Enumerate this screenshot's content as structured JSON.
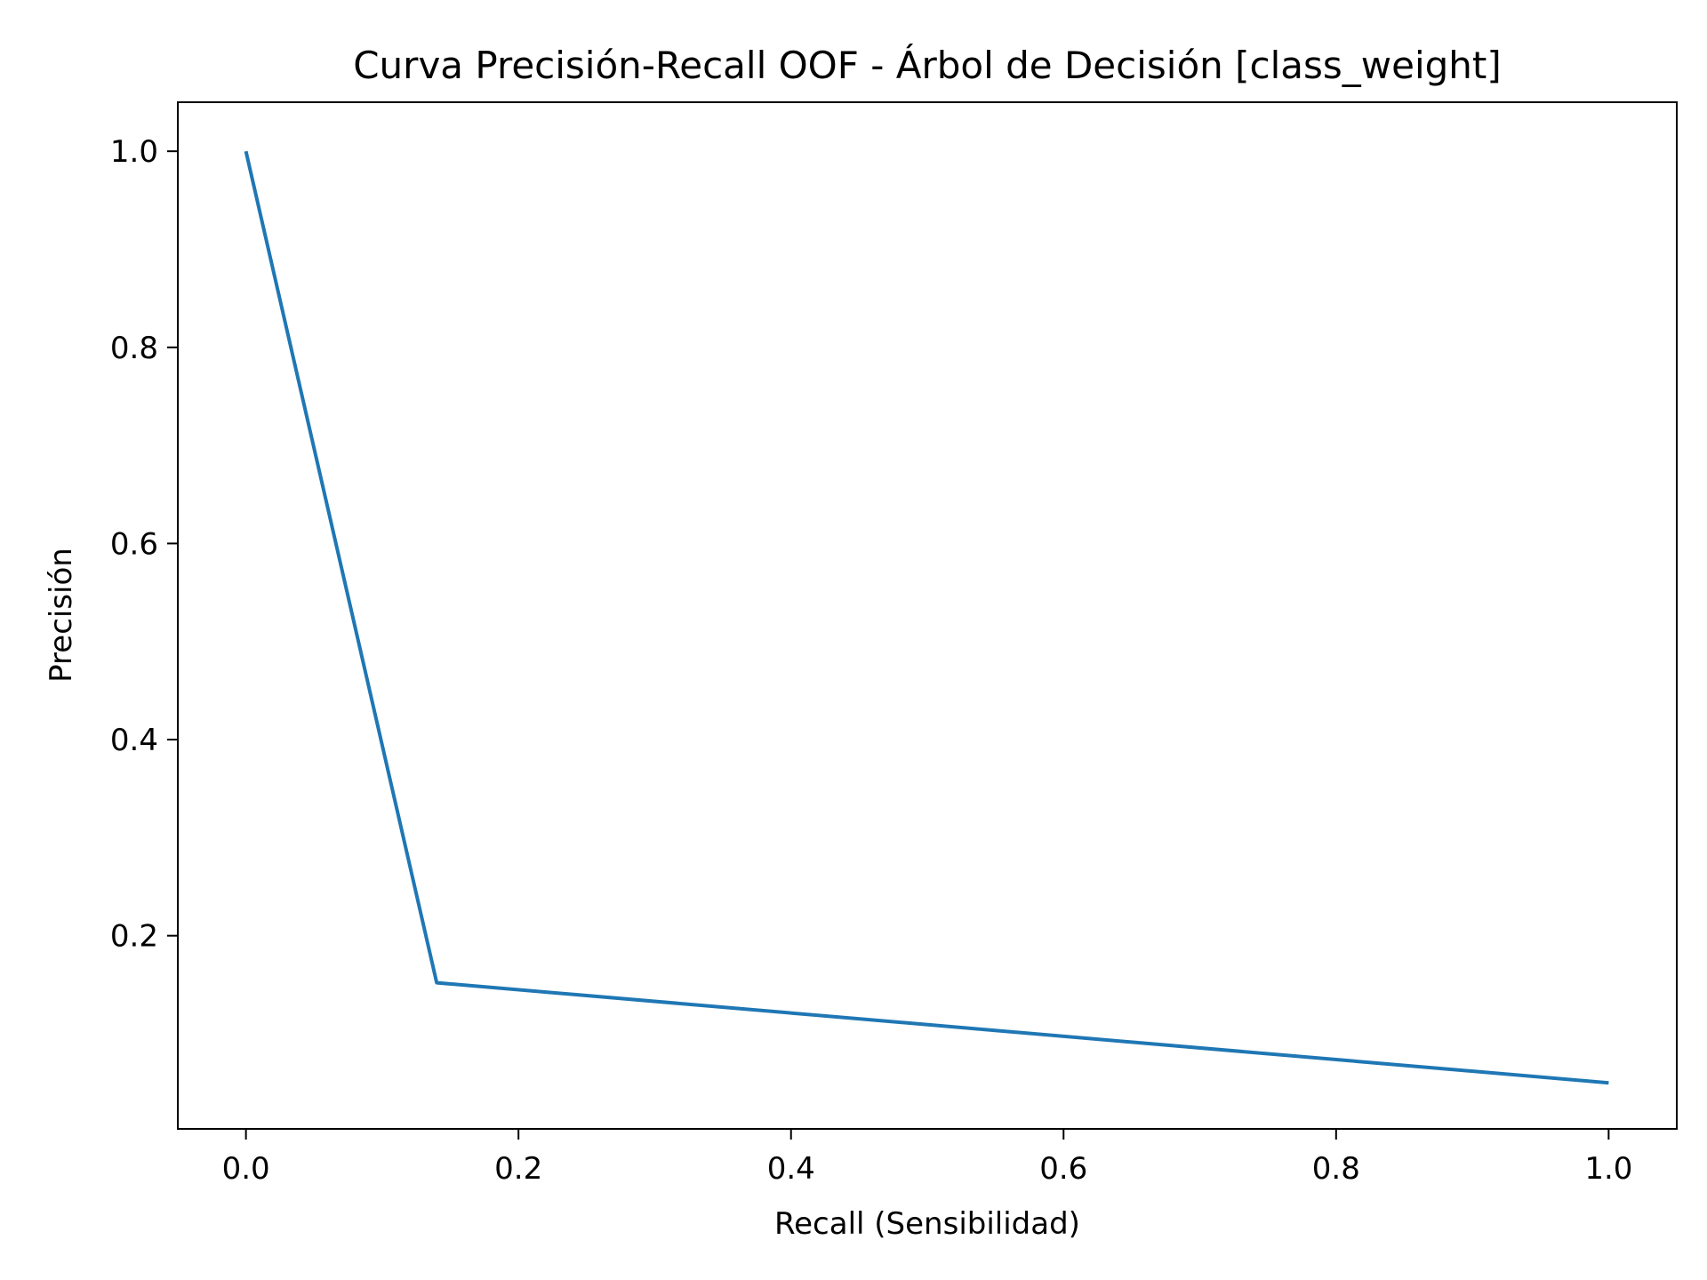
{
  "chart_data": {
    "type": "line",
    "title": "Curva Precisión-Recall OOF - Árbol de Decisión [class_weight]",
    "xlabel": "Recall (Sensibilidad)",
    "ylabel": "Precisión",
    "xlim": [
      -0.05,
      1.05
    ],
    "ylim": [
      0.003,
      1.05
    ],
    "xticks": [
      0.0,
      0.2,
      0.4,
      0.6,
      0.8,
      1.0
    ],
    "yticks": [
      0.2,
      0.4,
      0.6,
      0.8,
      1.0
    ],
    "xtick_labels": [
      "0.0",
      "0.2",
      "0.4",
      "0.6",
      "0.8",
      "1.0"
    ],
    "ytick_labels": [
      "0.2",
      "0.4",
      "0.6",
      "0.8",
      "1.0"
    ],
    "grid": false,
    "series": [
      {
        "color": "#1f77b4",
        "x": [
          0.0,
          0.14,
          1.0
        ],
        "y": [
          1.0,
          0.152,
          0.05
        ]
      }
    ]
  }
}
